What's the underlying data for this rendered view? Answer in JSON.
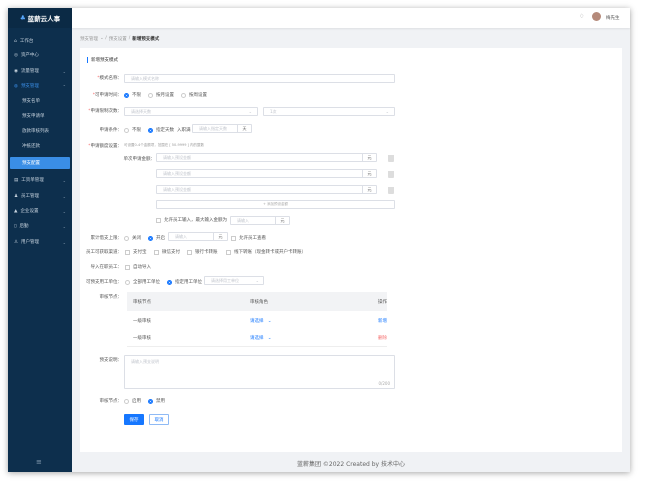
{
  "app": {
    "name": "蓝薪云人事"
  },
  "header": {
    "user_name": "梅先生"
  },
  "sidebar": {
    "items": [
      {
        "label": "工作台"
      },
      {
        "label": "资产中心"
      },
      {
        "label": "流量管理"
      },
      {
        "label": "预支管理"
      },
      {
        "label": "预支名单"
      },
      {
        "label": "预支申请单"
      },
      {
        "label": "放款审核列表"
      },
      {
        "label": "冲抵还款"
      },
      {
        "label": "预支配置"
      },
      {
        "label": "工资单管理"
      },
      {
        "label": "员工管理"
      },
      {
        "label": "企业设置"
      },
      {
        "label": "后勤"
      },
      {
        "label": "用户管理"
      }
    ]
  },
  "breadcrumb": [
    "预支管理",
    "预支设置",
    "新增预支模式"
  ],
  "form": {
    "title": "新增预支模式",
    "mode_name": {
      "label": "模式名称：",
      "placeholder": "请输入模式名称"
    },
    "apply_time": {
      "label": "可申请时间：",
      "options": [
        "不限",
        "按月设置",
        "按周设置"
      ],
      "selected": "不限"
    },
    "limit_count": {
      "label": "申请限制次数：",
      "placeholder": "请选择天数",
      "select2": "1次"
    },
    "condition": {
      "label": "申请条件：",
      "options": [
        "不限",
        "指定天数"
      ],
      "selected": "指定天数",
      "prefix": "入职满",
      "placeholder": "请输入指定天数",
      "unit": "天"
    },
    "quota": {
      "label": "申请额度设置：",
      "hint": "可设置0-4个金额项，范围在 [ 50-9999 ] 内的整数",
      "single_label": "单次申请金额：",
      "placeholder": "请输入预设金额",
      "unit": "元",
      "add": "+ 添加预设金额",
      "allow": "允许员工输入，最大输入金额为",
      "allow_placeholder": "请输入",
      "allow_unit": "元"
    },
    "cumulative": {
      "label": "累计借支上限：",
      "options": [
        "关闭",
        "开启"
      ],
      "selected": "开启",
      "placeholder": "请输入",
      "unit": "元",
      "check": "允许员工查看"
    },
    "channels": {
      "label": "员工可获取渠道：",
      "options": [
        "支付宝",
        "微信支付",
        "银行卡转账",
        "线下转账（现金转卡或开户卡转账）"
      ]
    },
    "import": {
      "label": "导入在职员工：",
      "option": "自动导入"
    },
    "units": {
      "label": "可预支用工单位：",
      "options": [
        "全部用工单位",
        "指定用工单位"
      ],
      "selected": "指定用工单位",
      "placeholder": "请选择用工单位"
    },
    "audit": {
      "label": "审核节点：",
      "columns": [
        "审核节点",
        "审核角色",
        "操作"
      ],
      "rows": [
        {
          "node": "一级审核",
          "role": "请选择",
          "action": "新增",
          "action_color": "#1677ff"
        },
        {
          "node": "一级审核",
          "role": "请选择",
          "action": "删除",
          "action_color": "#f56c6c"
        }
      ]
    },
    "description": {
      "label": "预支说明：",
      "placeholder": "请输入预支说明",
      "counter": "0/200"
    },
    "audit_switch": {
      "label": "审核节点：",
      "options": [
        "启用",
        "禁用"
      ],
      "selected": "禁用"
    },
    "save": "保存",
    "cancel": "取消"
  },
  "footer": "蓝薪集团 ©2022 Created by 技术中心",
  "colors": {
    "sidebar": "#0d2f4d",
    "accent": "#1677ff",
    "danger": "#f56c6c"
  }
}
